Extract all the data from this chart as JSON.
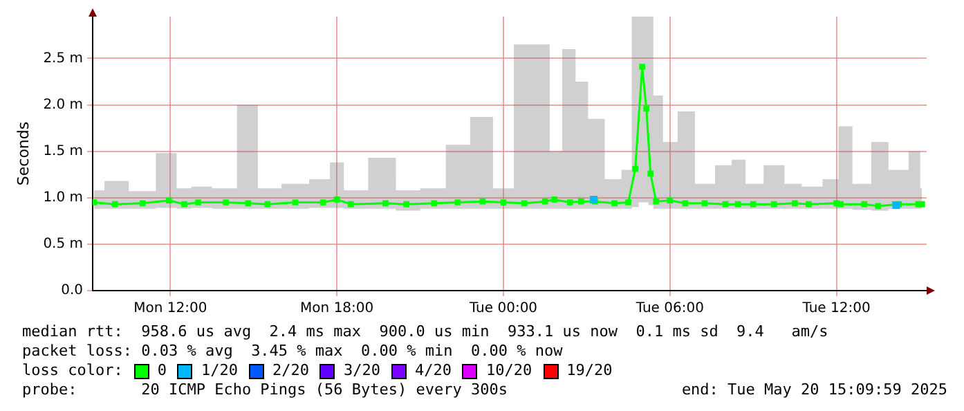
{
  "chart_data": {
    "type": "line",
    "ylabel": "Seconds",
    "xlim": [
      "2025-05-19T09:12",
      "2025-05-20T15:15"
    ],
    "xticks": [
      {
        "value": "2025-05-19T12:00",
        "label": "Mon 12:00"
      },
      {
        "value": "2025-05-19T18:00",
        "label": "Mon 18:00"
      },
      {
        "value": "2025-05-20T00:00",
        "label": "Tue 00:00"
      },
      {
        "value": "2025-05-20T06:00",
        "label": "Tue 06:00"
      },
      {
        "value": "2025-05-20T12:00",
        "label": "Tue 12:00"
      }
    ],
    "ylim": [
      0,
      2.95
    ],
    "yticks": [
      {
        "value": 0,
        "label": "0.0"
      },
      {
        "value": 0.5,
        "label": "0.5 m"
      },
      {
        "value": 1,
        "label": "1.0 m"
      },
      {
        "value": 1.5,
        "label": "1.5 m"
      },
      {
        "value": 2,
        "label": "2.0 m"
      },
      {
        "value": 2.5,
        "label": "2.5 m"
      }
    ],
    "grid": true,
    "marker": "square",
    "line_style": "solid",
    "legend": "bottom",
    "legend_title": "loss color:",
    "series": [
      {
        "name": "0",
        "color": "#00ff00",
        "x": [
          "2025-05-19T09:15",
          "2025-05-19T10:00",
          "2025-05-19T11:00",
          "2025-05-19T11:57",
          "2025-05-19T12:30",
          "2025-05-19T13:00",
          "2025-05-19T14:00",
          "2025-05-19T14:48",
          "2025-05-19T15:30",
          "2025-05-19T16:30",
          "2025-05-19T17:30",
          "2025-05-19T18:00",
          "2025-05-19T18:30",
          "2025-05-19T19:45",
          "2025-05-19T20:30",
          "2025-05-19T21:30",
          "2025-05-19T22:21",
          "2025-05-19T23:15",
          "2025-05-20T00:00",
          "2025-05-20T00:45",
          "2025-05-20T01:30",
          "2025-05-20T01:50",
          "2025-05-20T02:24",
          "2025-05-20T02:48",
          "2025-05-20T03:18",
          "2025-05-20T04:00",
          "2025-05-20T04:30",
          "2025-05-20T04:45",
          "2025-05-20T05:00",
          "2025-05-20T05:09",
          "2025-05-20T05:18",
          "2025-05-20T05:30",
          "2025-05-20T06:00",
          "2025-05-20T06:33",
          "2025-05-20T07:15",
          "2025-05-20T08:00",
          "2025-05-20T08:27",
          "2025-05-20T09:00",
          "2025-05-20T09:45",
          "2025-05-20T10:30",
          "2025-05-20T11:00",
          "2025-05-20T12:00",
          "2025-05-20T12:09",
          "2025-05-20T13:00",
          "2025-05-20T13:30",
          "2025-05-20T14:15",
          "2025-05-20T14:57",
          "2025-05-20T15:05"
        ],
        "values": [
          0.95,
          0.93,
          0.94,
          0.97,
          0.93,
          0.95,
          0.95,
          0.94,
          0.93,
          0.95,
          0.95,
          0.98,
          0.93,
          0.94,
          0.93,
          0.94,
          0.95,
          0.96,
          0.95,
          0.94,
          0.96,
          0.98,
          0.95,
          0.96,
          0.96,
          0.94,
          0.95,
          1.31,
          2.41,
          1.96,
          1.26,
          0.96,
          0.97,
          0.94,
          0.94,
          0.93,
          0.93,
          0.93,
          0.93,
          0.94,
          0.93,
          0.94,
          0.93,
          0.93,
          0.91,
          0.93,
          0.93,
          0.93
        ],
        "lower": [
          0.88,
          0.88,
          0.88,
          0.89,
          0.88,
          0.89,
          0.88,
          0.88,
          0.88,
          0.88,
          0.89,
          0.89,
          0.88,
          0.88,
          0.86,
          0.88,
          0.88,
          0.88,
          0.88,
          0.88,
          0.88,
          0.88,
          0.88,
          0.88,
          0.88,
          0.88,
          0.88,
          0.9,
          0.95,
          0.95,
          0.92,
          0.88,
          0.88,
          0.88,
          0.88,
          0.88,
          0.88,
          0.88,
          0.88,
          0.88,
          0.88,
          0.88,
          0.88,
          0.87,
          0.86,
          0.88,
          0.88,
          0.88
        ],
        "upper": [
          1.08,
          1.18,
          1.07,
          1.48,
          1.1,
          1.12,
          1.1,
          2.0,
          1.1,
          1.15,
          1.2,
          1.38,
          1.08,
          1.43,
          1.08,
          1.1,
          1.57,
          1.87,
          1.1,
          2.65,
          2.65,
          1.5,
          2.6,
          2.25,
          1.85,
          1.2,
          1.3,
          2.95,
          2.95,
          2.95,
          2.95,
          2.1,
          1.6,
          1.93,
          1.15,
          1.35,
          1.41,
          1.15,
          1.35,
          1.15,
          1.12,
          1.2,
          1.77,
          1.15,
          1.6,
          1.3,
          1.5,
          1.1
        ]
      },
      {
        "name": "1/20",
        "color": "#00b8ff",
        "type": "scatter",
        "x": [
          "2025-05-20T03:15",
          "2025-05-20T14:09"
        ],
        "values": [
          0.98,
          0.92
        ]
      },
      {
        "name": "2/20",
        "color": "#0059ff",
        "type": "scatter"
      },
      {
        "name": "3/20",
        "color": "#5e00ff",
        "type": "scatter"
      },
      {
        "name": "4/20",
        "color": "#7e00ff",
        "type": "scatter"
      },
      {
        "name": "10/20",
        "color": "#dd00ff",
        "type": "scatter"
      },
      {
        "name": "19/20",
        "color": "#ff0000",
        "type": "scatter"
      }
    ],
    "annotations": [
      "median rtt:  958.6 us avg  2.4 ms max  900.0 us min  933.1 us now  0.1 ms sd  9.4   am/s",
      "packet loss: 0.03 % avg  3.45 % max  0.00 % min  0.00 % now",
      "probe:       20 ICMP Echo Pings (56 Bytes) every 300s",
      "end: Tue May 20 15:09:59 2025"
    ]
  }
}
